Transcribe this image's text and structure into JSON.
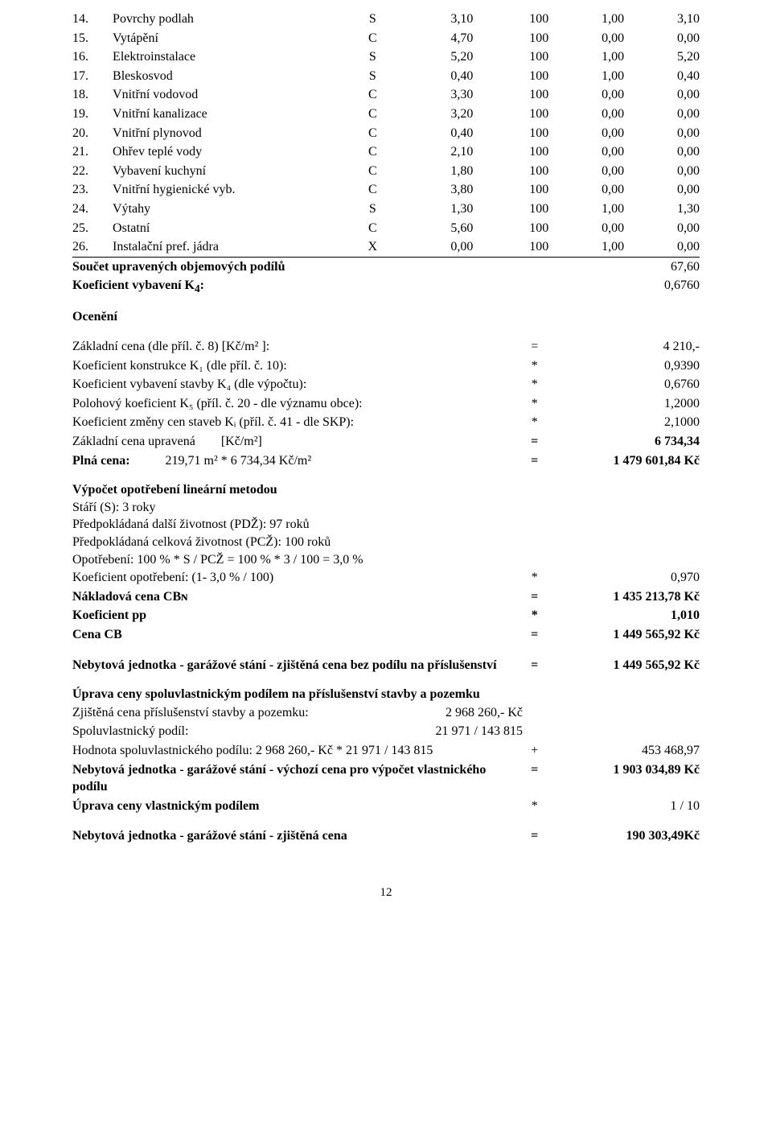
{
  "items": [
    {
      "n": "14.",
      "name": "Povrchy podlah",
      "t": "S",
      "a": "3,10",
      "b": "100",
      "c": "1,00",
      "d": "3,10"
    },
    {
      "n": "15.",
      "name": "Vytápění",
      "t": "C",
      "a": "4,70",
      "b": "100",
      "c": "0,00",
      "d": "0,00"
    },
    {
      "n": "16.",
      "name": "Elektroinstalace",
      "t": "S",
      "a": "5,20",
      "b": "100",
      "c": "1,00",
      "d": "5,20"
    },
    {
      "n": "17.",
      "name": "Bleskosvod",
      "t": "S",
      "a": "0,40",
      "b": "100",
      "c": "1,00",
      "d": "0,40"
    },
    {
      "n": "18.",
      "name": "Vnitřní vodovod",
      "t": "C",
      "a": "3,30",
      "b": "100",
      "c": "0,00",
      "d": "0,00"
    },
    {
      "n": "19.",
      "name": "Vnitřní kanalizace",
      "t": "C",
      "a": "3,20",
      "b": "100",
      "c": "0,00",
      "d": "0,00"
    },
    {
      "n": "20.",
      "name": "Vnitřní plynovod",
      "t": "C",
      "a": "0,40",
      "b": "100",
      "c": "0,00",
      "d": "0,00"
    },
    {
      "n": "21.",
      "name": "Ohřev teplé vody",
      "t": "C",
      "a": "2,10",
      "b": "100",
      "c": "0,00",
      "d": "0,00"
    },
    {
      "n": "22.",
      "name": "Vybavení kuchyní",
      "t": "C",
      "a": "1,80",
      "b": "100",
      "c": "0,00",
      "d": "0,00"
    },
    {
      "n": "23.",
      "name": "Vnitřní hygienické vyb.",
      "t": "C",
      "a": "3,80",
      "b": "100",
      "c": "0,00",
      "d": "0,00"
    },
    {
      "n": "24.",
      "name": "Výtahy",
      "t": "S",
      "a": "1,30",
      "b": "100",
      "c": "1,00",
      "d": "1,30"
    },
    {
      "n": "25.",
      "name": "Ostatní",
      "t": "C",
      "a": "5,60",
      "b": "100",
      "c": "0,00",
      "d": "0,00"
    },
    {
      "n": "26.",
      "name": "Instalační pref. jádra",
      "t": "X",
      "a": "0,00",
      "b": "100",
      "c": "1,00",
      "d": "0,00"
    }
  ],
  "sum": {
    "label1": "Součet upravených objemových podílů",
    "val1": "67,60",
    "label2": "Koeficient vybavení K",
    "val2": "0,6760"
  },
  "ocen_title": "Ocenění",
  "calc1": [
    {
      "lbl": "Základní cena (dle příl. č. 8) [Kč/m² ]:",
      "op": "=",
      "val": "4 210,-"
    },
    {
      "lbl": "Koeficient konstrukce K₁ (dle příl. č. 10):",
      "op": "*",
      "val": "0,9390"
    },
    {
      "lbl": "Koeficient vybavení stavby K₄ (dle výpočtu):",
      "op": "*",
      "val": "0,6760"
    },
    {
      "lbl": "Polohový koeficient K₅ (příl. č. 20 - dle významu obce):",
      "op": "*",
      "val": "1,2000"
    },
    {
      "lbl": "Koeficient změny cen staveb Kᵢ (příl. č. 41 - dle SKP):",
      "op": "*",
      "val": "2,1000"
    }
  ],
  "zcu": {
    "pre": "Základní cena upravená",
    "unit": "[Kč/m²]",
    "op": "=",
    "val": "6 734,34"
  },
  "plna": {
    "pre": "Plná cena:",
    "mid": "219,71 m² * 6 734,34 Kč/m²",
    "op": "=",
    "val": "1 479 601,84 Kč"
  },
  "opo_title": "Výpočet opotřebení lineární metodou",
  "opo_lines": [
    "Stáří (S): 3 roky",
    "Předpokládaná další životnost (PDŽ): 97 roků",
    "Předpokládaná celková životnost (PCŽ): 100 roků",
    "Opotřebení: 100 % * S / PCŽ = 100 % * 3 / 100 = 3,0 %"
  ],
  "calc2": [
    {
      "lbl": "Koeficient opotřebení: (1- 3,0 % / 100)",
      "op": "*",
      "val": "0,970",
      "bold": false
    },
    {
      "lbl": "Nákladová cena CBɴ",
      "op": "=",
      "val": "1 435 213,78 Kč",
      "bold": true
    },
    {
      "lbl": "Koeficient pp",
      "op": "*",
      "val": "1,010",
      "bold": true
    },
    {
      "lbl": "Cena CB",
      "op": "=",
      "val": "1 449 565,92 Kč",
      "bold": true
    }
  ],
  "nj1": {
    "lbl": "Nebytová jednotka - garážové stání - zjištěná cena bez podílu na příslušenství",
    "op": "=",
    "val": "1 449 565,92 Kč"
  },
  "uprava_title": "Úprava ceny spoluvlastnickým podílem na příslušenství stavby a pozemku",
  "uprava_lines": [
    {
      "l": "Zjištěná cena příslušenství stavby a pozemku:",
      "r": "2 968 260,- Kč"
    },
    {
      "l": "Spoluvlastnický podíl:",
      "r": "21 971 / 143 815"
    }
  ],
  "hodnota": {
    "lbl": "Hodnota spoluvlastnického podílu:  2 968 260,- Kč * 21 971 / 143 815",
    "op": "+",
    "val": "453 468,97"
  },
  "nj2": {
    "lbl": "Nebytová jednotka - garážové stání - výchozí cena pro výpočet vlastnického podílu",
    "op": "=",
    "val": "1 903 034,89 Kč"
  },
  "uprava2": {
    "lbl": "Úprava ceny vlastnickým podílem",
    "op": "*",
    "val": "1 / 10"
  },
  "nj3": {
    "lbl": "Nebytová jednotka - garážové stání - zjištěná cena",
    "op": "=",
    "val": "190 303,49Kč"
  },
  "pagenum": "12"
}
